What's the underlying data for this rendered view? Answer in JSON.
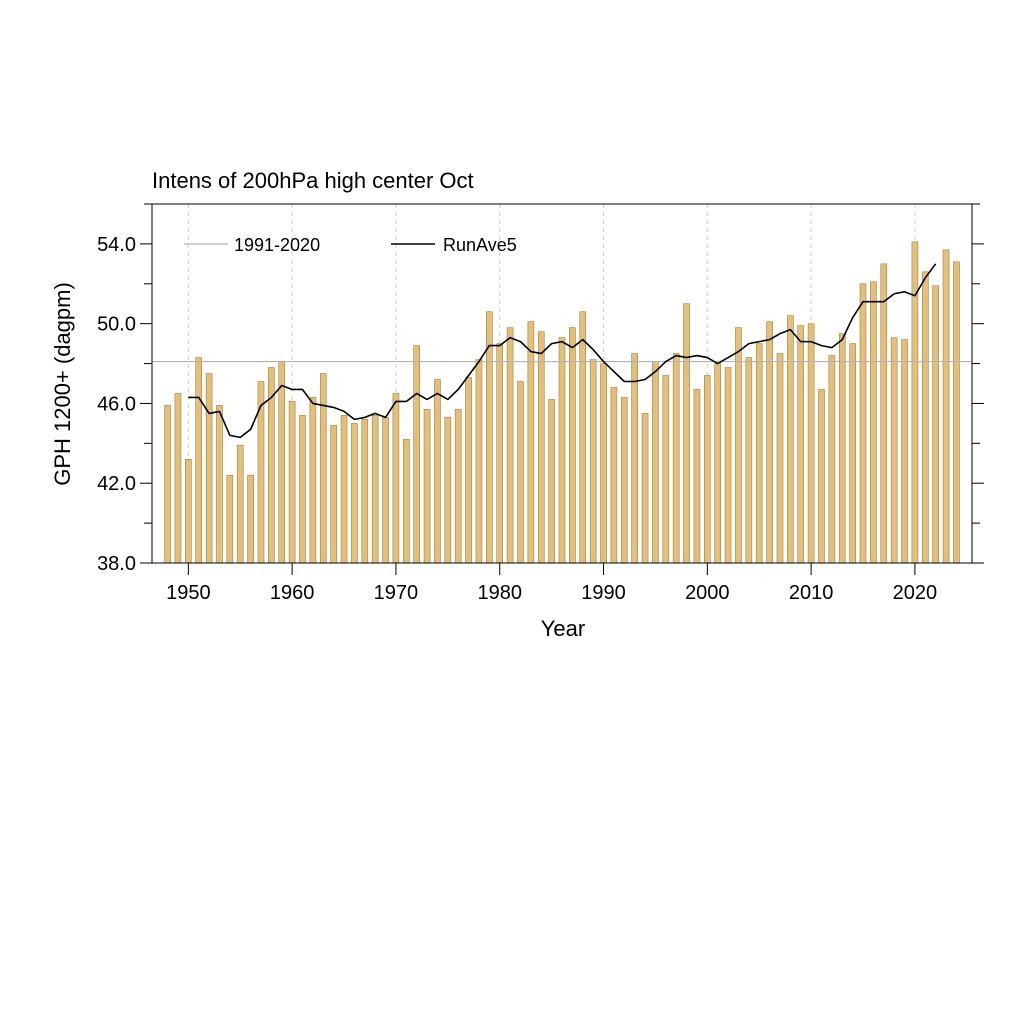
{
  "chart_data": {
    "type": "bar",
    "title": "Intens of 200hPa high center Oct",
    "xlabel": "Year",
    "ylabel": "GPH 1200+ (dagpm)",
    "xlim": [
      1946.5,
      2025.5
    ],
    "ylim": [
      38.0,
      56.0
    ],
    "x_ticks": [
      1950,
      1960,
      1970,
      1980,
      1990,
      2000,
      2010,
      2020
    ],
    "x_tick_labels": [
      "1950",
      "1960",
      "1970",
      "1980",
      "1990",
      "2000",
      "2010",
      "2020"
    ],
    "y_ticks": [
      38,
      42,
      46,
      50,
      54
    ],
    "y_tick_labels": [
      "38.0",
      "42.0",
      "46.0",
      "50.0",
      "54.0"
    ],
    "grid": "vertical dashed at decades",
    "colors": {
      "bar_fill": "#e2c07c",
      "bar_edge": "#a08040",
      "climatology_line": "#b3b3b3",
      "running_mean_line": "#000000"
    },
    "legend": [
      {
        "label": "1991-2020",
        "color": "#b3b3b3"
      },
      {
        "label": "RunAve5",
        "color": "#000000"
      }
    ],
    "climatology": 48.1,
    "series": [
      {
        "name": "bars",
        "x": [
          1948,
          1949,
          1950,
          1951,
          1952,
          1953,
          1954,
          1955,
          1956,
          1957,
          1958,
          1959,
          1960,
          1961,
          1962,
          1963,
          1964,
          1965,
          1966,
          1967,
          1968,
          1969,
          1970,
          1971,
          1972,
          1973,
          1974,
          1975,
          1976,
          1977,
          1978,
          1979,
          1980,
          1981,
          1982,
          1983,
          1984,
          1985,
          1986,
          1987,
          1988,
          1989,
          1990,
          1991,
          1992,
          1993,
          1994,
          1995,
          1996,
          1997,
          1998,
          1999,
          2000,
          2001,
          2002,
          2003,
          2004,
          2005,
          2006,
          2007,
          2008,
          2009,
          2010,
          2011,
          2012,
          2013,
          2014,
          2015,
          2016,
          2017,
          2018,
          2019,
          2020,
          2021,
          2022,
          2023,
          2024
        ],
        "values": [
          45.9,
          46.5,
          43.2,
          48.3,
          47.5,
          45.9,
          42.4,
          43.9,
          42.4,
          47.1,
          47.8,
          48.1,
          46.1,
          45.4,
          46.3,
          47.5,
          44.9,
          45.4,
          45.0,
          45.2,
          45.4,
          45.3,
          46.5,
          44.2,
          48.9,
          45.7,
          47.2,
          45.3,
          45.7,
          47.3,
          48.2,
          50.6,
          49.0,
          49.8,
          47.1,
          50.1,
          49.6,
          46.2,
          49.3,
          49.8,
          50.6,
          48.2,
          48.0,
          46.8,
          46.3,
          48.5,
          45.5,
          48.1,
          47.4,
          48.5,
          51.0,
          46.7,
          47.4,
          48.0,
          47.8,
          49.8,
          48.3,
          49.0,
          50.1,
          48.5,
          50.4,
          49.9,
          50.0,
          46.7,
          48.4,
          49.5,
          49.0,
          52.0,
          52.1,
          53.0,
          49.3,
          49.2,
          54.1,
          52.6,
          51.9,
          53.7,
          53.1
        ]
      },
      {
        "name": "RunAve5",
        "x": [
          1950,
          1951,
          1952,
          1953,
          1954,
          1955,
          1956,
          1957,
          1958,
          1959,
          1960,
          1961,
          1962,
          1963,
          1964,
          1965,
          1966,
          1967,
          1968,
          1969,
          1970,
          1971,
          1972,
          1973,
          1974,
          1975,
          1976,
          1977,
          1978,
          1979,
          1980,
          1981,
          1982,
          1983,
          1984,
          1985,
          1986,
          1987,
          1988,
          1989,
          1990,
          1991,
          1992,
          1993,
          1994,
          1995,
          1996,
          1997,
          1998,
          1999,
          2000,
          2001,
          2002,
          2003,
          2004,
          2005,
          2006,
          2007,
          2008,
          2009,
          2010,
          2011,
          2012,
          2013,
          2014,
          2015,
          2016,
          2017,
          2018,
          2019,
          2020,
          2021,
          2022
        ],
        "values": [
          46.3,
          46.3,
          45.5,
          45.6,
          44.4,
          44.3,
          44.7,
          45.9,
          46.3,
          46.9,
          46.7,
          46.7,
          46.0,
          45.9,
          45.8,
          45.6,
          45.2,
          45.3,
          45.5,
          45.3,
          46.1,
          46.1,
          46.5,
          46.2,
          46.5,
          46.2,
          46.7,
          47.4,
          48.1,
          48.9,
          48.9,
          49.3,
          49.1,
          48.6,
          48.5,
          49.0,
          49.1,
          48.8,
          49.2,
          48.7,
          48.1,
          47.6,
          47.1,
          47.1,
          47.2,
          47.6,
          48.1,
          48.4,
          48.3,
          48.4,
          48.3,
          48.0,
          48.3,
          48.6,
          49.0,
          49.1,
          49.2,
          49.5,
          49.7,
          49.1,
          49.1,
          48.9,
          48.8,
          49.2,
          50.3,
          51.1,
          51.1,
          51.1,
          51.5,
          51.6,
          51.4,
          52.3,
          53.0
        ]
      }
    ]
  }
}
